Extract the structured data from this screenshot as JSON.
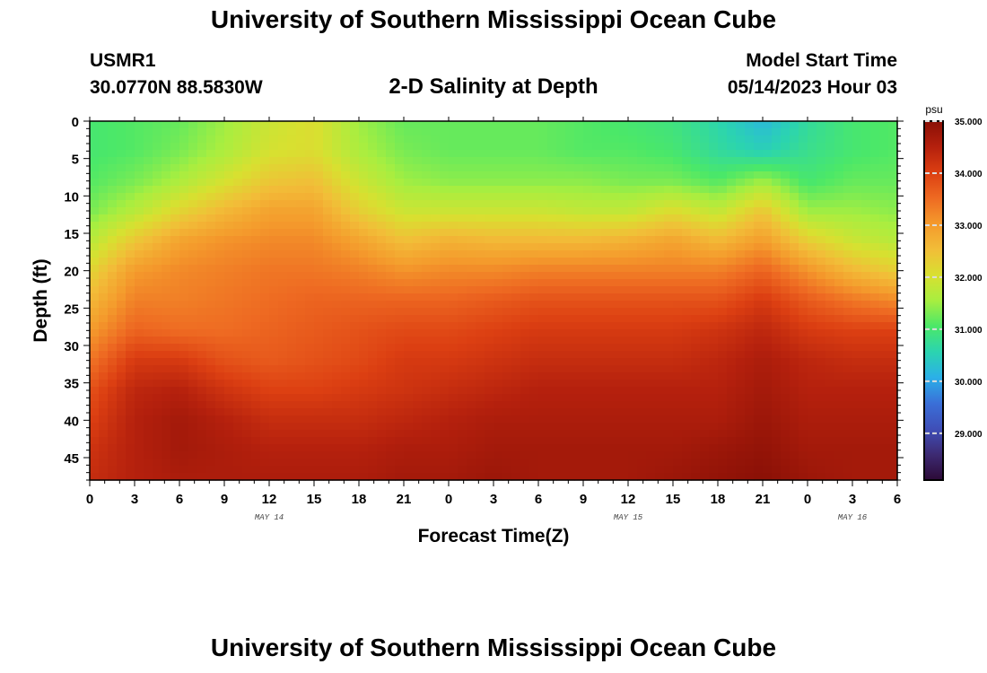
{
  "header": {
    "title": "University of Southern Mississippi Ocean Cube",
    "station_id": "USMR1",
    "coordinates": "30.0770N  88.5830W",
    "subtitle": "2-D Salinity at Depth",
    "model_start_label": "Model Start Time",
    "model_start_value": "05/14/2023 Hour 03"
  },
  "footer": {
    "repeat_title": "University of Southern Mississippi Ocean Cube"
  },
  "chart_data": {
    "type": "heatmap",
    "title": "2-D Salinity at Depth",
    "xlabel": "Forecast Time(Z)",
    "ylabel": "Depth (ft)",
    "x_tick_labels": [
      "0",
      "3",
      "6",
      "9",
      "12",
      "15",
      "18",
      "21",
      "0",
      "3",
      "6",
      "9",
      "12",
      "15",
      "18",
      "21",
      "0",
      "3",
      "6"
    ],
    "x_range_hours": [
      0,
      54
    ],
    "date_labels": [
      {
        "text": "MAY 14",
        "hour": 12
      },
      {
        "text": "MAY 15",
        "hour": 36
      },
      {
        "text": "MAY 16",
        "hour": 51
      }
    ],
    "y_range_ft": [
      0,
      48
    ],
    "y_ticks": [
      0,
      5,
      10,
      15,
      20,
      25,
      30,
      35,
      40,
      45
    ],
    "y_direction": "depth increases downward",
    "units": "psu",
    "colorbar_range": [
      28.1,
      35.0
    ],
    "colorbar_ticks": [
      "35.000",
      "34.000",
      "33.000",
      "32.000",
      "31.000",
      "30.000",
      "29.000"
    ],
    "colormap": [
      "#2c0a37",
      "#3d2a72",
      "#3f4fb8",
      "#3a6fd8",
      "#2bb0e8",
      "#2bd4b0",
      "#4be868",
      "#a8ee40",
      "#d8e030",
      "#f2bd38",
      "#f49a2c",
      "#ee6a22",
      "#dc3f12",
      "#b4200d",
      "#8a1006"
    ],
    "profile_hours": [
      0,
      3,
      6,
      9,
      12,
      15,
      18,
      21,
      24,
      27,
      30,
      33,
      36,
      39,
      42,
      45,
      48,
      51,
      54
    ],
    "profile_depths_ft": [
      0,
      4,
      8,
      12,
      16,
      20,
      24,
      28,
      32,
      36,
      40,
      44,
      48
    ],
    "salinity_psu": [
      [
        31.0,
        31.0,
        31.1,
        31.3,
        31.7,
        32.2,
        32.6,
        33.0,
        33.4,
        33.8,
        34.0,
        34.2,
        34.3
      ],
      [
        31.1,
        31.1,
        31.3,
        31.7,
        32.4,
        33.0,
        33.3,
        33.6,
        34.1,
        34.4,
        34.5,
        34.5,
        34.5
      ],
      [
        31.2,
        31.3,
        31.6,
        32.2,
        32.9,
        33.2,
        33.3,
        33.5,
        34.1,
        34.5,
        34.7,
        34.7,
        34.6
      ],
      [
        31.5,
        31.6,
        32.0,
        32.6,
        33.1,
        33.3,
        33.4,
        33.5,
        33.8,
        34.2,
        34.5,
        34.6,
        34.6
      ],
      [
        31.9,
        32.0,
        32.4,
        32.9,
        33.2,
        33.4,
        33.5,
        33.6,
        33.7,
        34.0,
        34.3,
        34.5,
        34.6
      ],
      [
        32.1,
        32.1,
        32.5,
        32.9,
        33.2,
        33.4,
        33.6,
        33.7,
        33.8,
        34.0,
        34.3,
        34.5,
        34.6
      ],
      [
        31.5,
        31.6,
        31.9,
        32.3,
        32.9,
        33.3,
        33.6,
        33.8,
        33.9,
        34.1,
        34.3,
        34.5,
        34.6
      ],
      [
        31.2,
        31.3,
        31.5,
        31.9,
        32.5,
        33.1,
        33.6,
        33.9,
        34.1,
        34.2,
        34.4,
        34.6,
        34.7
      ],
      [
        31.2,
        31.2,
        31.4,
        31.9,
        32.7,
        33.2,
        33.6,
        33.9,
        34.1,
        34.3,
        34.5,
        34.6,
        34.7
      ],
      [
        31.2,
        31.2,
        31.4,
        31.9,
        32.6,
        33.2,
        33.7,
        34.0,
        34.2,
        34.4,
        34.6,
        34.7,
        34.8
      ],
      [
        31.2,
        31.2,
        31.4,
        31.9,
        32.6,
        33.3,
        33.8,
        34.1,
        34.3,
        34.5,
        34.6,
        34.7,
        34.7
      ],
      [
        31.1,
        31.1,
        31.4,
        31.8,
        32.6,
        33.3,
        33.8,
        34.1,
        34.3,
        34.5,
        34.6,
        34.7,
        34.7
      ],
      [
        31.0,
        31.1,
        31.3,
        31.8,
        32.7,
        33.3,
        33.8,
        34.1,
        34.3,
        34.5,
        34.6,
        34.7,
        34.7
      ],
      [
        30.9,
        31.0,
        31.3,
        32.1,
        32.9,
        33.3,
        33.8,
        34.1,
        34.3,
        34.5,
        34.6,
        34.7,
        34.8
      ],
      [
        30.6,
        30.7,
        31.1,
        31.8,
        32.6,
        33.3,
        33.8,
        34.2,
        34.4,
        34.5,
        34.6,
        34.8,
        34.9
      ],
      [
        30.2,
        30.5,
        31.5,
        32.4,
        33.0,
        33.6,
        34.1,
        34.4,
        34.6,
        34.7,
        34.8,
        34.9,
        35.0
      ],
      [
        30.7,
        30.8,
        31.0,
        31.5,
        32.3,
        33.1,
        33.7,
        34.1,
        34.4,
        34.5,
        34.6,
        34.7,
        34.8
      ],
      [
        31.0,
        31.0,
        31.2,
        31.5,
        31.9,
        32.6,
        33.4,
        34.0,
        34.3,
        34.5,
        34.6,
        34.7,
        34.7
      ],
      [
        31.1,
        31.1,
        31.2,
        31.4,
        31.7,
        32.3,
        33.2,
        34.0,
        34.3,
        34.5,
        34.6,
        34.7,
        34.7
      ]
    ]
  }
}
